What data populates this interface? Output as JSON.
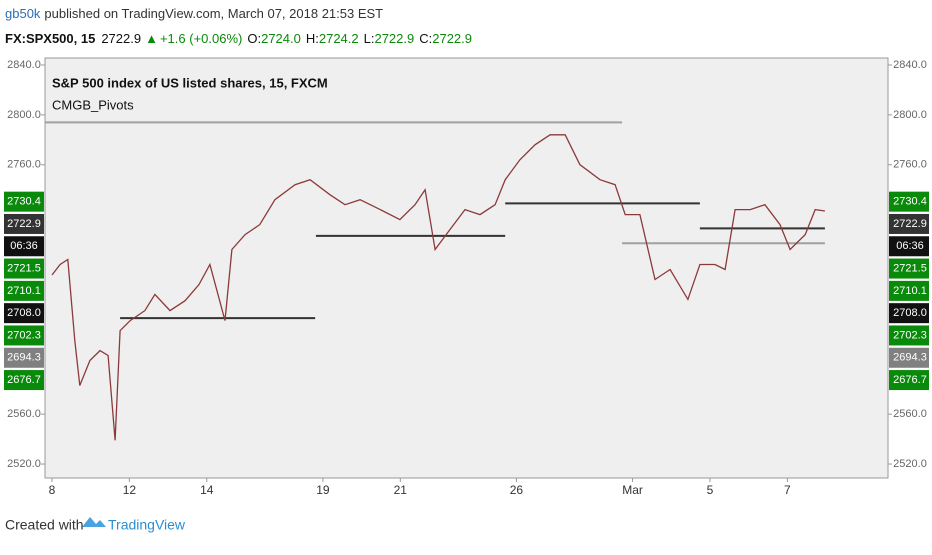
{
  "header": {
    "author": "gb50k",
    "published": "published on TradingView.com, March 07, 2018 21:53 EST",
    "symbol": "FX:SPX500, 15",
    "last": "2722.9",
    "change": "+1.6 (+0.06%)",
    "open_label": "O:",
    "open": "2724.0",
    "high_label": "H:",
    "high": "2724.2",
    "low_label": "L:",
    "low": "2722.9",
    "close_label": "C:",
    "close": "2722.9"
  },
  "footer": {
    "created": "Created with",
    "brand": "TradingView"
  },
  "chart_data": {
    "type": "line",
    "title": "S&P 500 index of US listed shares, 15, FXCM",
    "subtitle": "CMGB_Pivots",
    "color": "#8b3a3a",
    "x": [
      0,
      0.21,
      0.41,
      0.59,
      0.72,
      0.98,
      1.24,
      1.45,
      1.63,
      1.76,
      2.02,
      2.4,
      2.66,
      3.05,
      3.44,
      3.8,
      4.08,
      4.47,
      4.65,
      4.99,
      5.37,
      5.76,
      6.28,
      6.67,
      7.18,
      7.57,
      7.96,
      8.48,
      8.99,
      9.38,
      9.64,
      9.9,
      10.28,
      10.67,
      11.06,
      11.45,
      11.71,
      12.09,
      12.48,
      12.87,
      13.26,
      13.64,
      14.16,
      14.55,
      14.81,
      15.19,
      15.58,
      15.97,
      16.43,
      16.74,
      17.13,
      17.39,
      17.65,
      18.04,
      18.42,
      18.81,
      19.07,
      19.46,
      19.72,
      19.97
    ],
    "values": [
      2671.6,
      2680,
      2684,
      2619,
      2583,
      2603,
      2611,
      2607,
      2539,
      2627,
      2635,
      2643,
      2656,
      2643,
      2651,
      2664,
      2680,
      2635,
      2692,
      2704,
      2712,
      2732,
      2744,
      2748,
      2736,
      2728,
      2732,
      2724,
      2716,
      2728,
      2740,
      2692,
      2708,
      2724,
      2720,
      2728,
      2748,
      2764,
      2776,
      2784,
      2784,
      2760,
      2748,
      2744,
      2720,
      2720,
      2668,
      2676,
      2652,
      2680,
      2680,
      2676,
      2724,
      2724,
      2728,
      2712,
      2692,
      2704,
      2724,
      2722.9
    ],
    "pivots": [
      {
        "x": [
          -0.18,
          14.73
        ],
        "value": 2794,
        "color": "#a0a0a0"
      },
      {
        "x": [
          1.76,
          6.8
        ],
        "value": 2637,
        "color": "#333333"
      },
      {
        "x": [
          6.82,
          11.71
        ],
        "value": 2703,
        "color": "#333333"
      },
      {
        "x": [
          11.71,
          16.74
        ],
        "value": 2729,
        "color": "#333333"
      },
      {
        "x": [
          16.74,
          19.97
        ],
        "value": 2709,
        "color": "#333333"
      },
      {
        "x": [
          14.73,
          19.97
        ],
        "value": 2697,
        "color": "#a0a0a0"
      }
    ],
    "xlim": [
      -0.18,
      21.6
    ],
    "xticks": [
      {
        "value": 0,
        "label": "8"
      },
      {
        "value": 2,
        "label": "12"
      },
      {
        "value": 4,
        "label": "14"
      },
      {
        "value": 7,
        "label": "19"
      },
      {
        "value": 9,
        "label": "21"
      },
      {
        "value": 12,
        "label": "26"
      },
      {
        "value": 15,
        "label": "Mar"
      },
      {
        "value": 17,
        "label": "5"
      },
      {
        "value": 19,
        "label": "7"
      }
    ],
    "ylim": [
      2508.8,
      2845.6
    ],
    "yticks": [
      {
        "value": 2520,
        "label": "2520.0"
      },
      {
        "value": 2560,
        "label": "2560.0"
      },
      {
        "value": 2760,
        "label": "2760.0"
      },
      {
        "value": 2800,
        "label": "2800.0"
      },
      {
        "value": 2840,
        "label": "2840.0"
      }
    ],
    "price_labels": [
      {
        "value": 2730.4,
        "color": "#0a8a0a"
      },
      {
        "value": 2722.9,
        "color": "#333333"
      },
      {
        "label": "06:36",
        "color": "#111111"
      },
      {
        "value": 2721.5,
        "color": "#0a8a0a"
      },
      {
        "value": 2710.1,
        "color": "#0a8a0a"
      },
      {
        "value": 2708,
        "label": "2708.0",
        "color": "#111111"
      },
      {
        "value": 2702.3,
        "color": "#0a8a0a"
      },
      {
        "value": 2694.3,
        "color": "#808080"
      },
      {
        "value": 2676.7,
        "color": "#0a8a0a"
      }
    ]
  }
}
